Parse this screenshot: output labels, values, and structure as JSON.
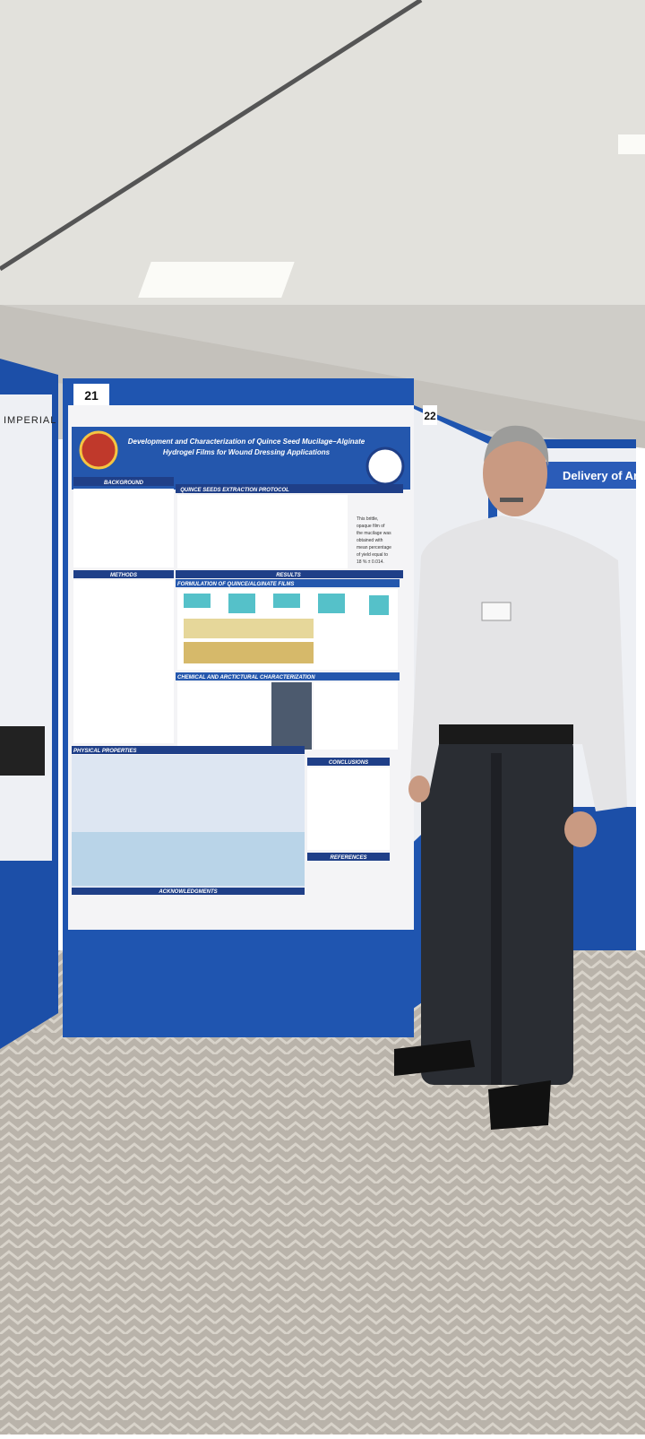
{
  "board_numbers": [
    "21",
    "22"
  ],
  "left_poster": {
    "header": "IMPERIAL"
  },
  "poster": {
    "title_lines": [
      "Development and Characterization of Quince Seed Mucilage–Alginate",
      "Hydrogel Films for Wound Dressing Applications"
    ],
    "sections": {
      "background": "BACKGROUND",
      "protocol": "QUINCE SEEDS EXTRACTION PROTOCOL",
      "methods": "METHODS",
      "results": "RESULTS",
      "formulation": "FORMULATION OF QUINCE/ALGINATE FILMS",
      "characterization": "CHEMICAL AND ARCTICTURAL CHARACTERIZATION",
      "physical": "PHYSICAL PROPERTIES",
      "conclusions": "CONCLUSIONS",
      "references": "REFERENCES",
      "acknowledgments": "ACKNOWLEDGMENTS"
    },
    "yield_text": [
      "This brittle,",
      "opaque film of",
      "the mucilage was",
      "obtained with",
      "mean percentage",
      "of yield equal to",
      "18 % ± 0.014."
    ]
  },
  "right_poster": {
    "title": "Delivery of Anti-F"
  }
}
